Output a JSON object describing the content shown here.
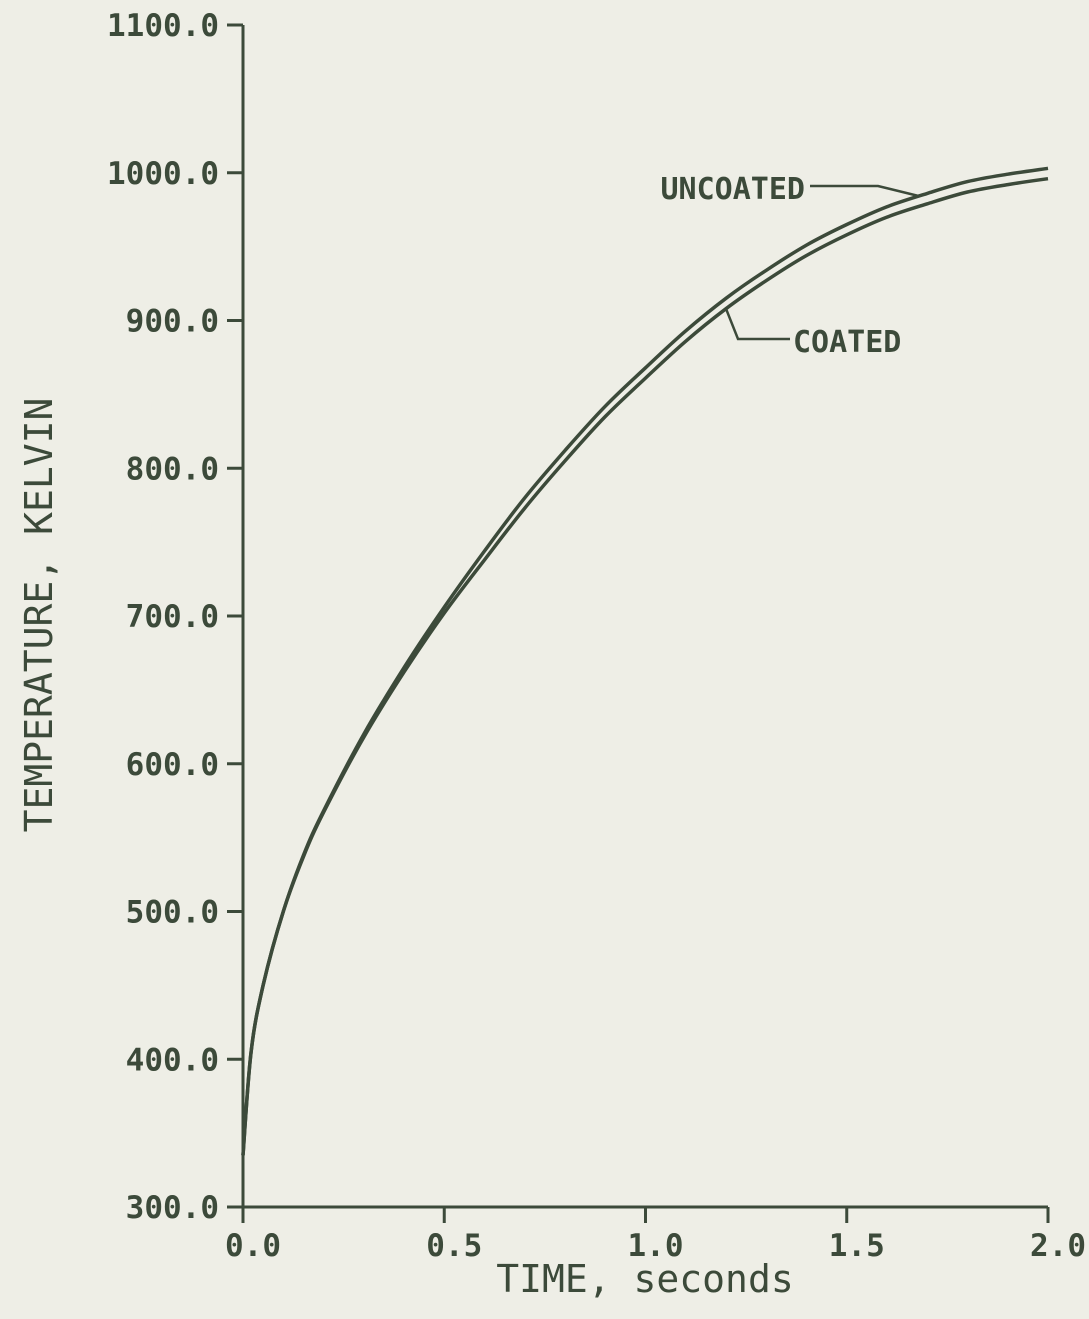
{
  "chart_data": {
    "type": "line",
    "xlabel": "TIME, seconds",
    "ylabel": "TEMPERATURE, KELVIN",
    "xlim": [
      0.0,
      2.0
    ],
    "ylim": [
      300.0,
      1100.0
    ],
    "x_ticks": [
      "0.0",
      "0.5",
      "1.0",
      "1.5",
      "2.0"
    ],
    "y_ticks": [
      "300.0",
      "400.0",
      "500.0",
      "600.0",
      "700.0",
      "800.0",
      "900.0",
      "1000.0",
      "1100.0"
    ],
    "grid": false,
    "series": [
      {
        "name": "UNCOATED",
        "x": [
          0.0,
          0.02,
          0.05,
          0.1,
          0.15,
          0.2,
          0.3,
          0.4,
          0.5,
          0.6,
          0.7,
          0.8,
          0.9,
          1.0,
          1.1,
          1.2,
          1.3,
          1.4,
          1.5,
          1.6,
          1.7,
          1.8,
          1.9,
          2.0
        ],
        "y": [
          335,
          405,
          450,
          500,
          538,
          568,
          620,
          665,
          706,
          744,
          780,
          812,
          842,
          868,
          893,
          915,
          934,
          951,
          965,
          977,
          986,
          994,
          999,
          1003
        ]
      },
      {
        "name": "COATED",
        "x": [
          0.0,
          0.02,
          0.05,
          0.1,
          0.15,
          0.2,
          0.3,
          0.4,
          0.5,
          0.6,
          0.7,
          0.8,
          0.9,
          1.0,
          1.1,
          1.2,
          1.3,
          1.4,
          1.5,
          1.6,
          1.7,
          1.8,
          1.9,
          2.0
        ],
        "y": [
          335,
          405,
          450,
          500,
          537,
          567,
          618,
          662,
          702,
          738,
          773,
          805,
          835,
          861,
          886,
          908,
          927,
          944,
          958,
          970,
          979,
          987,
          992,
          996
        ]
      }
    ]
  }
}
